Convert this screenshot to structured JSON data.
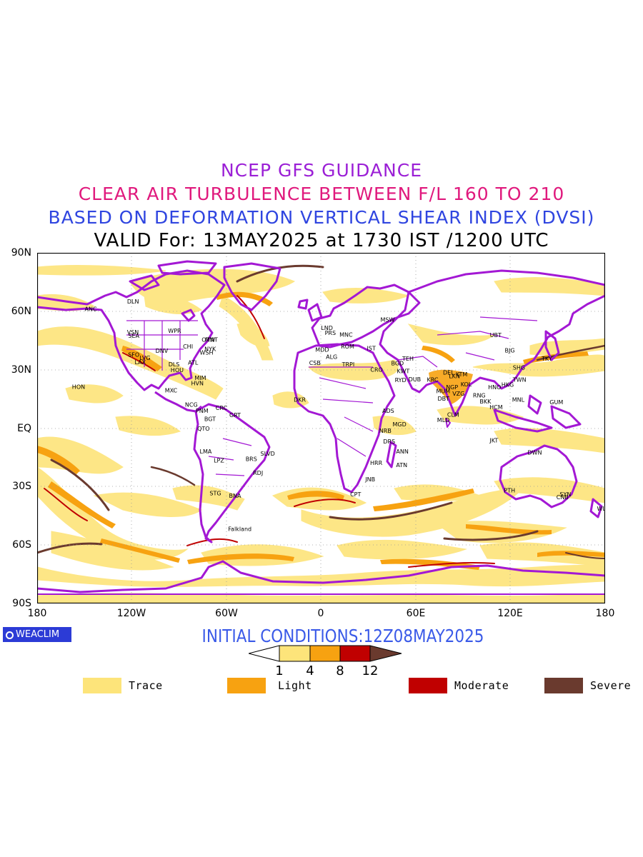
{
  "header": {
    "line1": "NCEP GFS GUIDANCE",
    "line2": "CLEAR AIR TURBULENCE BETWEEN F/L 160 TO 210",
    "line3": "BASED ON DEFORMATION VERTICAL SHEAR INDEX (DVSI)",
    "line4": "VALID For: 13MAY2025 at 1730 IST /1200 UTC"
  },
  "colors": {
    "line1": "#9b1fd6",
    "line2": "#e0197d",
    "line3": "#2f45e0",
    "line4": "#000000",
    "coastline": "#a318d4",
    "trace": "#fde47a",
    "light": "#f7a211",
    "moderate": "#c00000",
    "severe": "#6a3a2e",
    "initial_conditions": "#3a5ae8"
  },
  "map": {
    "lat_labels": [
      "90N",
      "60N",
      "30N",
      "EQ",
      "30S",
      "60S",
      "90S"
    ],
    "lon_labels": [
      "180",
      "120W",
      "60W",
      "0",
      "60E",
      "120E",
      "180"
    ],
    "stations": [
      {
        "name": "ANC",
        "lon": -149.9,
        "lat": 61.2
      },
      {
        "name": "DLN",
        "lon": -123,
        "lat": 65
      },
      {
        "name": "VSN",
        "lon": -123.1,
        "lat": 49.3
      },
      {
        "name": "SEA",
        "lon": -122.3,
        "lat": 47.5
      },
      {
        "name": "WPR",
        "lon": -97,
        "lat": 50
      },
      {
        "name": "OTW",
        "lon": -75.7,
        "lat": 45.4
      },
      {
        "name": "MNT",
        "lon": -73.6,
        "lat": 45.5
      },
      {
        "name": "NYK",
        "lon": -74,
        "lat": 40.7
      },
      {
        "name": "CHI",
        "lon": -87.6,
        "lat": 41.9
      },
      {
        "name": "DNV",
        "lon": -105,
        "lat": 39.7
      },
      {
        "name": "SFO",
        "lon": -122.4,
        "lat": 37.8
      },
      {
        "name": "LAX",
        "lon": -118.2,
        "lat": 34
      },
      {
        "name": "LVG",
        "lon": -115.1,
        "lat": 36.2
      },
      {
        "name": "WSH",
        "lon": -77,
        "lat": 38.9
      },
      {
        "name": "ATL",
        "lon": -84.4,
        "lat": 33.7
      },
      {
        "name": "DLS",
        "lon": -96.8,
        "lat": 32.8
      },
      {
        "name": "HOU",
        "lon": -95.4,
        "lat": 29.8
      },
      {
        "name": "MIM",
        "lon": -80.2,
        "lat": 25.8
      },
      {
        "name": "HVN",
        "lon": -82.4,
        "lat": 23.1
      },
      {
        "name": "HON",
        "lon": -157.9,
        "lat": 21.3
      },
      {
        "name": "MXC",
        "lon": -99.1,
        "lat": 19.4
      },
      {
        "name": "NCG",
        "lon": -86.3,
        "lat": 12.1
      },
      {
        "name": "CRC",
        "lon": -66.9,
        "lat": 10.5
      },
      {
        "name": "PNM",
        "lon": -79.5,
        "lat": 9
      },
      {
        "name": "BGT",
        "lon": -74.1,
        "lat": 4.7
      },
      {
        "name": "GRT",
        "lon": -58.2,
        "lat": 6.8
      },
      {
        "name": "QTO",
        "lon": -78.5,
        "lat": -0.2
      },
      {
        "name": "LMA",
        "lon": -77,
        "lat": -12
      },
      {
        "name": "LPZ",
        "lon": -68.1,
        "lat": -16.5
      },
      {
        "name": "BRS",
        "lon": -47.9,
        "lat": -15.8
      },
      {
        "name": "SLVD",
        "lon": -38.5,
        "lat": -13
      },
      {
        "name": "RDJ",
        "lon": -43.2,
        "lat": -22.9
      },
      {
        "name": "STG",
        "lon": -70.7,
        "lat": -33.4
      },
      {
        "name": "BNA",
        "lon": -58.4,
        "lat": -34.6
      },
      {
        "name": "Falkland",
        "lon": -59,
        "lat": -51.7
      },
      {
        "name": "LND",
        "lon": -0.1,
        "lat": 51.5
      },
      {
        "name": "PRS",
        "lon": 2.3,
        "lat": 48.9
      },
      {
        "name": "MNC",
        "lon": 11.6,
        "lat": 48.1
      },
      {
        "name": "MDD",
        "lon": -3.7,
        "lat": 40.4
      },
      {
        "name": "ROM",
        "lon": 12.5,
        "lat": 41.9
      },
      {
        "name": "IST",
        "lon": 29,
        "lat": 41
      },
      {
        "name": "MSW",
        "lon": 37.6,
        "lat": 55.8
      },
      {
        "name": "ALG",
        "lon": 3,
        "lat": 36.7
      },
      {
        "name": "CSB",
        "lon": -7.6,
        "lat": 33.6
      },
      {
        "name": "TRPI",
        "lon": 13.2,
        "lat": 32.9
      },
      {
        "name": "CRO",
        "lon": 31.2,
        "lat": 30
      },
      {
        "name": "TEH",
        "lon": 51.4,
        "lat": 35.7
      },
      {
        "name": "BGD",
        "lon": 44.4,
        "lat": 33.3
      },
      {
        "name": "KWT",
        "lon": 48,
        "lat": 29.4
      },
      {
        "name": "RYD",
        "lon": 46.7,
        "lat": 24.7
      },
      {
        "name": "DUB",
        "lon": 55.3,
        "lat": 25.2
      },
      {
        "name": "KRC",
        "lon": 67,
        "lat": 24.9
      },
      {
        "name": "DKR",
        "lon": -17.4,
        "lat": 14.7
      },
      {
        "name": "ADS",
        "lon": 38.7,
        "lat": 9
      },
      {
        "name": "MGD",
        "lon": 45.3,
        "lat": 2
      },
      {
        "name": "NRB",
        "lon": 36.8,
        "lat": -1.3
      },
      {
        "name": "DRS",
        "lon": 39.3,
        "lat": -6.8
      },
      {
        "name": "ANN",
        "lon": 47.5,
        "lat": -12
      },
      {
        "name": "HRR",
        "lon": 31,
        "lat": -17.8
      },
      {
        "name": "ATN",
        "lon": 47.5,
        "lat": -18.9
      },
      {
        "name": "JNB",
        "lon": 28,
        "lat": -26.2
      },
      {
        "name": "CPT",
        "lon": 18.4,
        "lat": -33.9
      },
      {
        "name": "DEL",
        "lon": 77.2,
        "lat": 28.6
      },
      {
        "name": "LKN",
        "lon": 80.9,
        "lat": 26.8
      },
      {
        "name": "KTM",
        "lon": 85.3,
        "lat": 27.7
      },
      {
        "name": "MUM",
        "lon": 72.9,
        "lat": 19.1
      },
      {
        "name": "NGP",
        "lon": 79.1,
        "lat": 21.1
      },
      {
        "name": "KOL",
        "lon": 88.4,
        "lat": 22.6
      },
      {
        "name": "VZG",
        "lon": 83.2,
        "lat": 17.7
      },
      {
        "name": "DBT",
        "lon": 73.8,
        "lat": 15.3
      },
      {
        "name": "CLM",
        "lon": 79.9,
        "lat": 6.9
      },
      {
        "name": "MLD",
        "lon": 73.5,
        "lat": 4.2
      },
      {
        "name": "RNG",
        "lon": 96.2,
        "lat": 16.8
      },
      {
        "name": "BKK",
        "lon": 100.5,
        "lat": 13.8
      },
      {
        "name": "HCM",
        "lon": 106.7,
        "lat": 10.8
      },
      {
        "name": "HNO",
        "lon": 105.8,
        "lat": 21
      },
      {
        "name": "HKG",
        "lon": 114.2,
        "lat": 22.3
      },
      {
        "name": "MNL",
        "lon": 121,
        "lat": 14.6
      },
      {
        "name": "TWN",
        "lon": 121.5,
        "lat": 25
      },
      {
        "name": "SHG",
        "lon": 121.5,
        "lat": 31.2
      },
      {
        "name": "BJG",
        "lon": 116.4,
        "lat": 39.9
      },
      {
        "name": "UBT",
        "lon": 106.9,
        "lat": 47.9
      },
      {
        "name": "TKY",
        "lon": 139.7,
        "lat": 35.7
      },
      {
        "name": "GUM",
        "lon": 144.8,
        "lat": 13.4
      },
      {
        "name": "JKT",
        "lon": 106.8,
        "lat": -6.2
      },
      {
        "name": "DWN",
        "lon": 130.8,
        "lat": -12.5
      },
      {
        "name": "PTH",
        "lon": 115.9,
        "lat": -31.9
      },
      {
        "name": "SYN",
        "lon": 151.2,
        "lat": -33.9
      },
      {
        "name": "CNB",
        "lon": 149.1,
        "lat": -35.3
      },
      {
        "name": "WLT",
        "lon": 174.8,
        "lat": -41.3
      }
    ]
  },
  "logo": {
    "text": "WEACLIM"
  },
  "initial_conditions": "INITIAL CONDITIONS:12Z08MAY2025",
  "colorbar": {
    "thresholds": [
      "1",
      "4",
      "8",
      "12"
    ]
  },
  "legend": [
    {
      "label": "Trace",
      "color": "#fde47a"
    },
    {
      "label": "Light",
      "color": "#f7a211"
    },
    {
      "label": "Moderate",
      "color": "#c00000"
    },
    {
      "label": "Severe",
      "color": "#6a3a2e"
    }
  ]
}
